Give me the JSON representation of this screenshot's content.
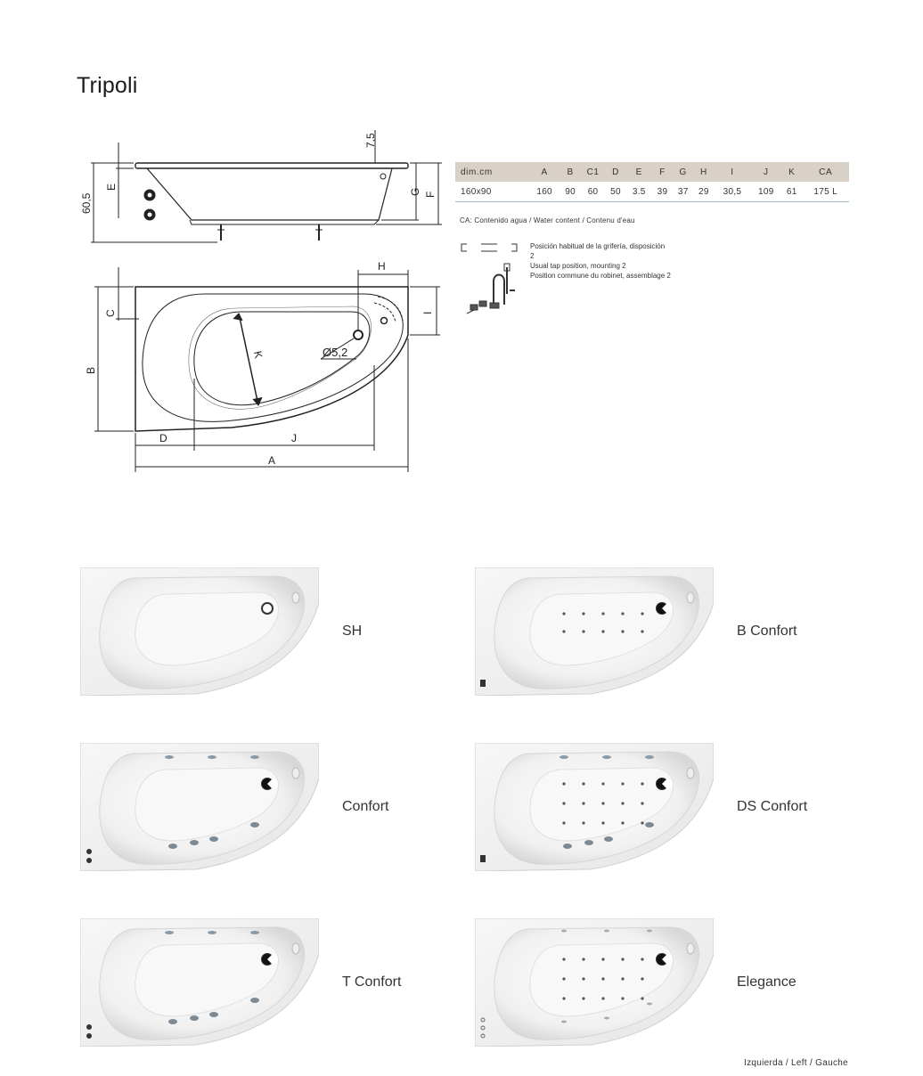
{
  "page": {
    "title": "Tripoli",
    "footer": "Izquierda  / Left / Gauche"
  },
  "drawing": {
    "labels": {
      "top_offset": "7,5",
      "height": "60,5",
      "E": "E",
      "G": "G",
      "F": "F",
      "H": "H",
      "C": "C",
      "I": "I",
      "B": "B",
      "K": "K",
      "drain": "Ø5,2",
      "D": "D",
      "J": "J",
      "A": "A"
    }
  },
  "spec_table": {
    "headers": [
      "dim.cm",
      "A",
      "B",
      "C1",
      "D",
      "E",
      "F",
      "G",
      "H",
      "I",
      "J",
      "K",
      "CA"
    ],
    "rows": [
      [
        "160x90",
        "160",
        "90",
        "60",
        "50",
        "3.5",
        "39",
        "37",
        "29",
        "30,5",
        "109",
        "61",
        "175 L"
      ]
    ]
  },
  "notes": {
    "content": "CA: Contenido agua / Water content / Contenu d'eau",
    "tap_position": [
      "Posición habitual de la grifería, disposición",
      "2",
      "Usual tap position, mounting 2",
      "Position commune du robinet, assemblage 2"
    ]
  },
  "models": [
    {
      "label": "SH"
    },
    {
      "label": "B Confort"
    },
    {
      "label": "Confort"
    },
    {
      "label": "DS Confort"
    },
    {
      "label": "T Confort"
    },
    {
      "label": "Elegance"
    }
  ]
}
